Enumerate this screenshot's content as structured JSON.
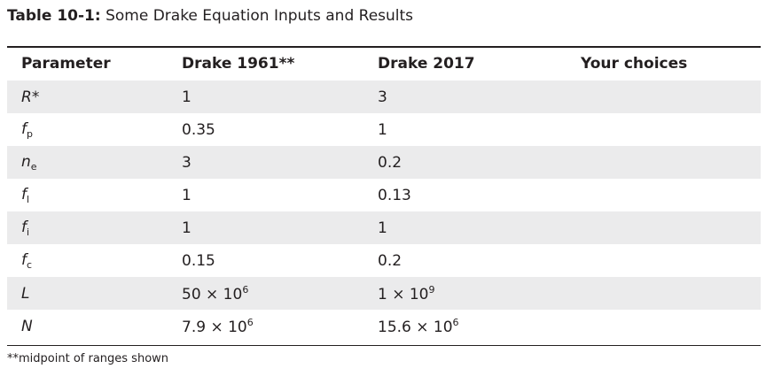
{
  "caption": {
    "label": "Table 10-1:",
    "text": " Some Drake Equation Inputs and Results"
  },
  "table": {
    "headers": [
      "Parameter",
      "Drake 1961**",
      "Drake 2017",
      "Your choices"
    ],
    "rows": [
      {
        "param": "R",
        "param_suffix": "*",
        "drake1961": "1",
        "drake2017": "3",
        "yours": ""
      },
      {
        "param": "f",
        "param_sub": "p",
        "drake1961": "0.35",
        "drake2017": "1",
        "yours": ""
      },
      {
        "param": "n",
        "param_sub": "e",
        "drake1961": "3",
        "drake2017": "0.2",
        "yours": ""
      },
      {
        "param": "f",
        "param_sub": "l",
        "drake1961": "1",
        "drake2017": "0.13",
        "yours": ""
      },
      {
        "param": "f",
        "param_sub": "i",
        "drake1961": "1",
        "drake2017": "1",
        "yours": ""
      },
      {
        "param": "f",
        "param_sub": "c",
        "drake1961": "0.15",
        "drake2017": "0.2",
        "yours": ""
      },
      {
        "param": "L",
        "drake1961": "50 × 10",
        "drake1961_exp": "6",
        "drake2017": "1 × 10",
        "drake2017_exp": "9",
        "yours": ""
      },
      {
        "param": "N",
        "drake1961": "7.9 × 10",
        "drake1961_exp": "6",
        "drake2017": "15.6 × 10",
        "drake2017_exp": "6",
        "yours": ""
      }
    ]
  },
  "footnote": "**midpoint of ranges shown",
  "colors": {
    "text": "#231f20",
    "stripe": "#ebebec",
    "rule": "#231f20"
  }
}
